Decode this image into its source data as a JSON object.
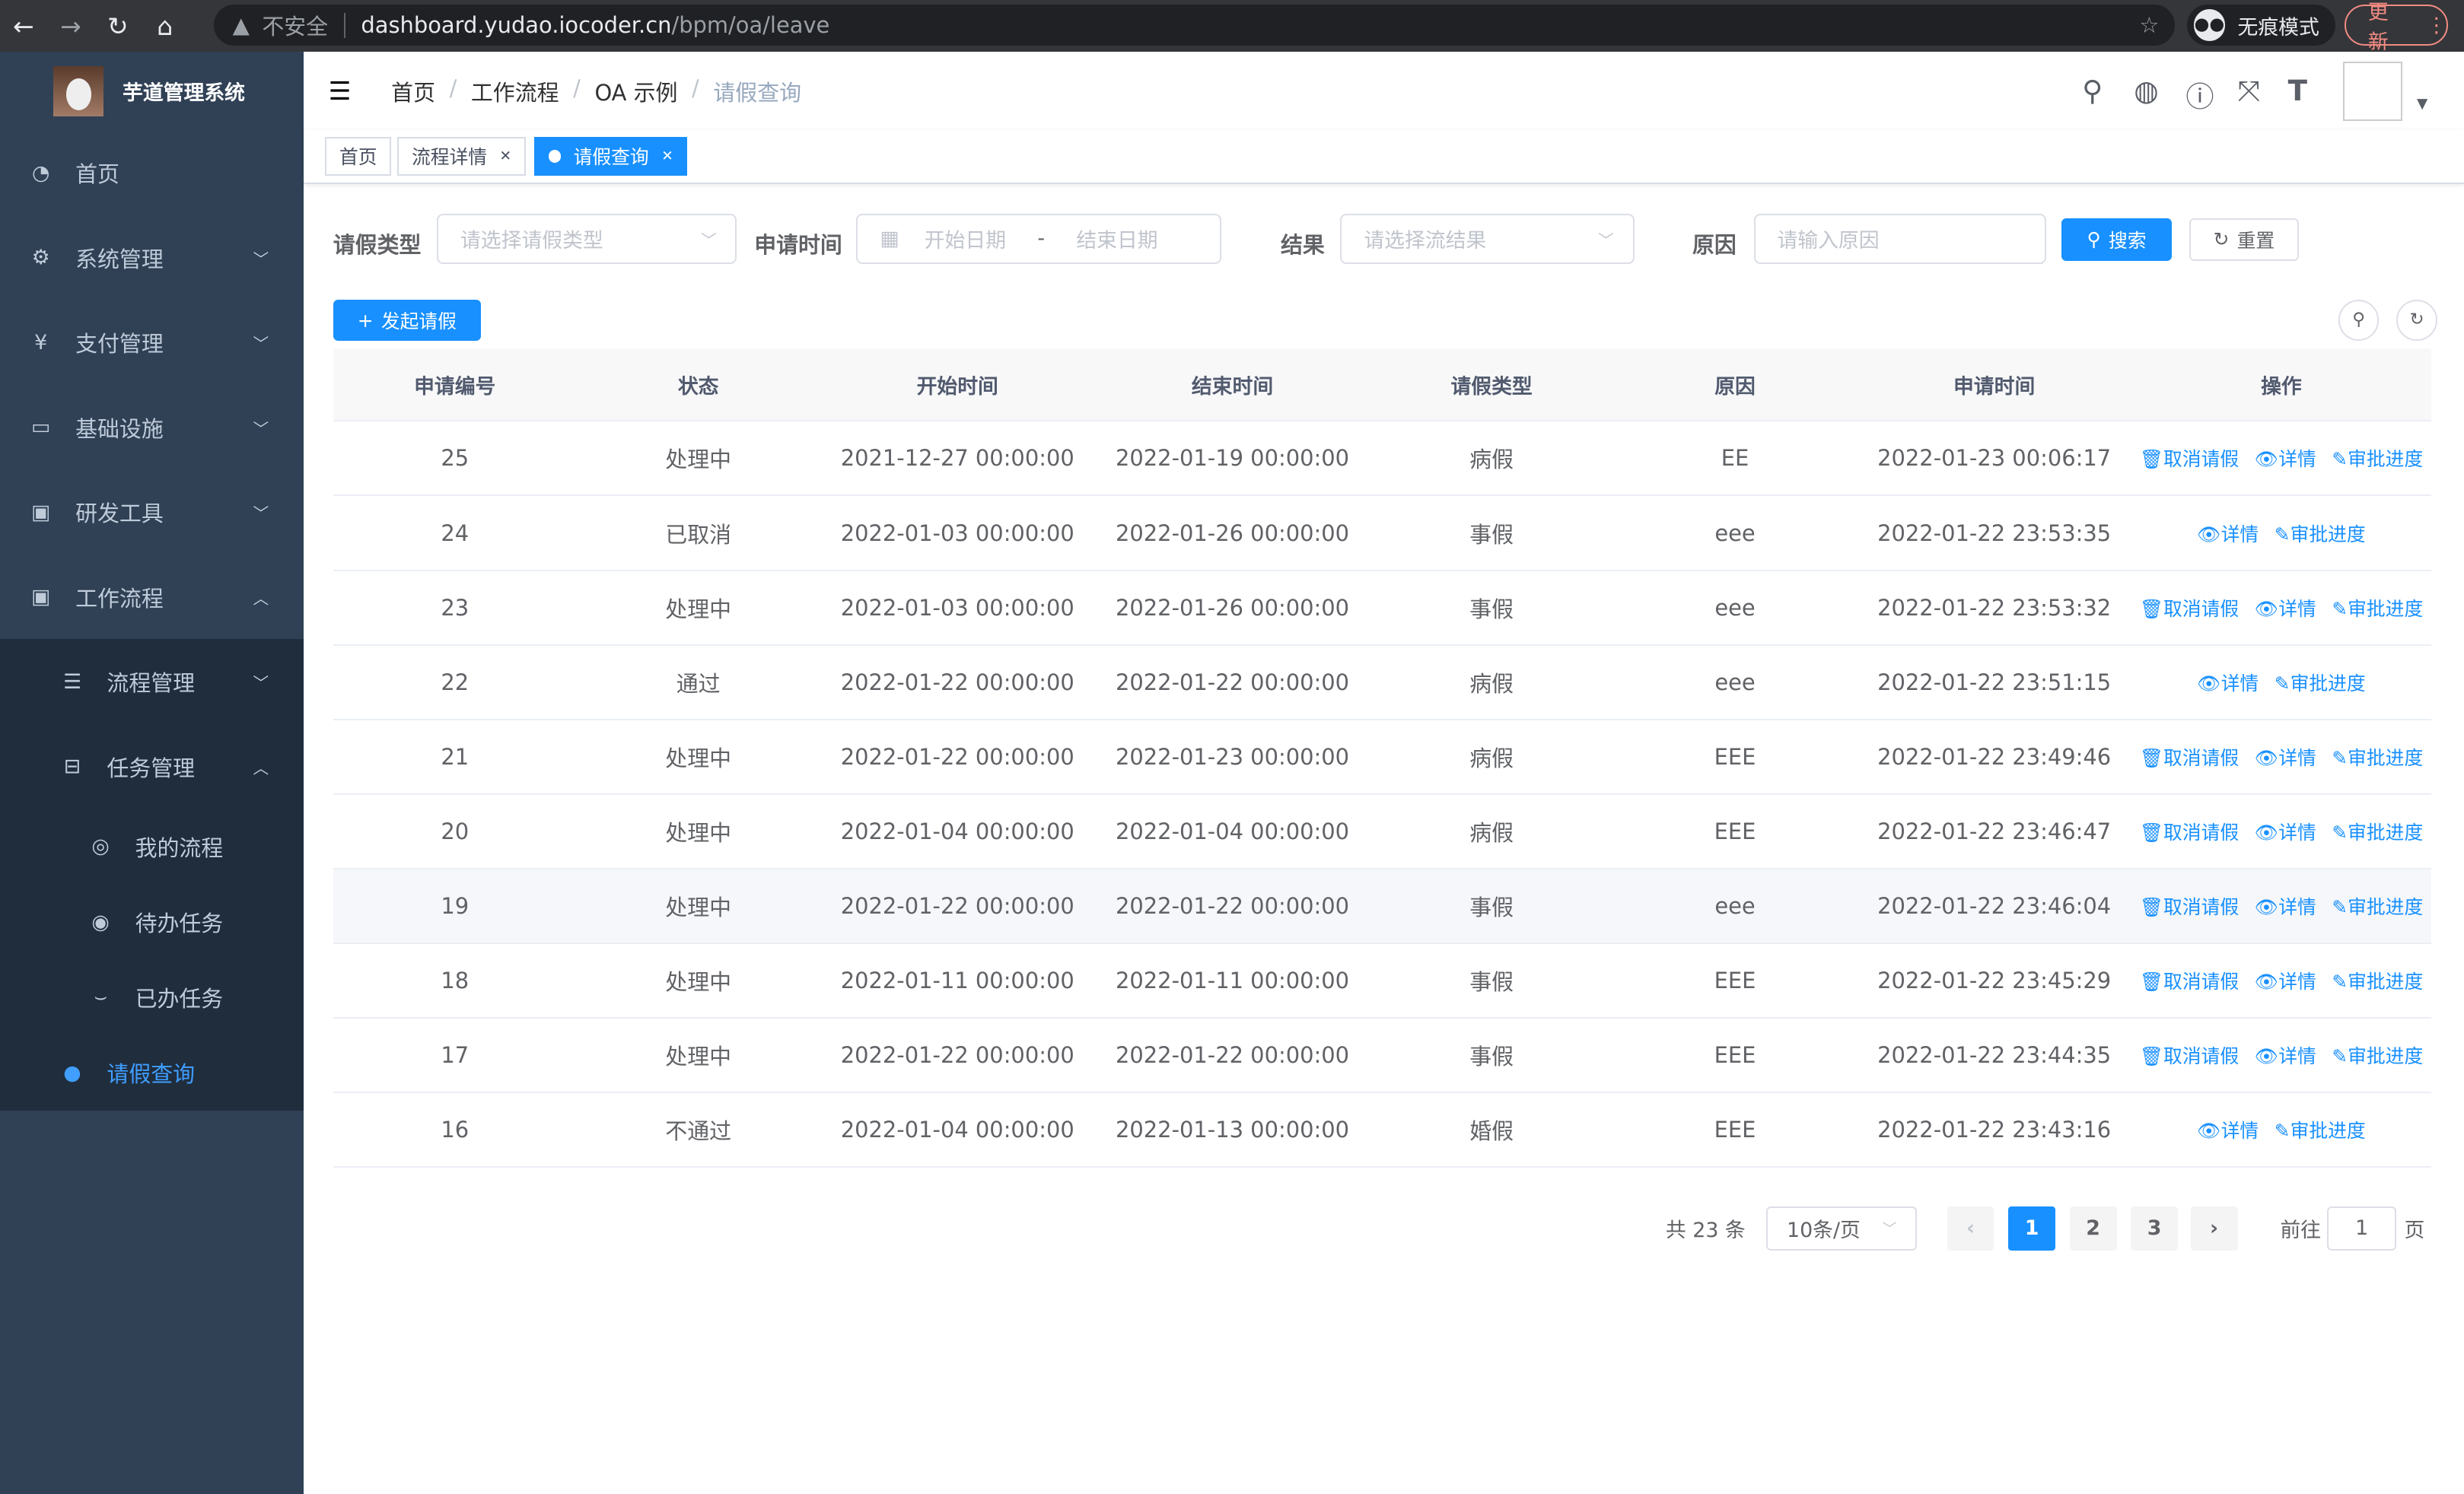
{
  "browser": {
    "insecure": "不安全",
    "url_host": "dashboard.yudao.iocoder.cn",
    "url_path": "/bpm/oa/leave",
    "incognito": "无痕模式",
    "update": "更新"
  },
  "app": {
    "title": "芋道管理系统"
  },
  "sidebar": {
    "items": [
      {
        "label": "首页",
        "icon": "dashboard-icon"
      },
      {
        "label": "系统管理",
        "icon": "gear-icon"
      },
      {
        "label": "支付管理",
        "icon": "yen-icon"
      },
      {
        "label": "基础设施",
        "icon": "monitor-icon"
      },
      {
        "label": "研发工具",
        "icon": "toolbox-icon"
      },
      {
        "label": "工作流程",
        "icon": "toolbox-icon"
      }
    ],
    "sub": [
      {
        "label": "流程管理"
      },
      {
        "label": "任务管理"
      }
    ],
    "sub2": [
      {
        "label": "我的流程"
      },
      {
        "label": "待办任务"
      },
      {
        "label": "已办任务"
      }
    ],
    "active": {
      "label": "请假查询"
    }
  },
  "breadcrumb": [
    "首页",
    "工作流程",
    "OA 示例",
    "请假查询"
  ],
  "tags": [
    {
      "label": "首页"
    },
    {
      "label": "流程详情"
    },
    {
      "label": "请假查询"
    }
  ],
  "filters": {
    "type_label": "请假类型",
    "type_placeholder": "请选择请假类型",
    "time_label": "申请时间",
    "start_placeholder": "开始日期",
    "range_sep": "-",
    "end_placeholder": "结束日期",
    "result_label": "结果",
    "result_placeholder": "请选择流结果",
    "reason_label": "原因",
    "reason_placeholder": "请输入原因",
    "search": "搜索",
    "reset": "重置"
  },
  "toolbar": {
    "add": "发起请假"
  },
  "table": {
    "columns": [
      "申请编号",
      "状态",
      "开始时间",
      "结束时间",
      "请假类型",
      "原因",
      "申请时间",
      "操作"
    ],
    "rows": [
      [
        "25",
        "处理中",
        "2021-12-27 00:00:00",
        "2022-01-19 00:00:00",
        "病假",
        "EE",
        "2022-01-23 00:06:17"
      ],
      [
        "24",
        "已取消",
        "2022-01-03 00:00:00",
        "2022-01-26 00:00:00",
        "事假",
        "eee",
        "2022-01-22 23:53:35"
      ],
      [
        "23",
        "处理中",
        "2022-01-03 00:00:00",
        "2022-01-26 00:00:00",
        "事假",
        "eee",
        "2022-01-22 23:53:32"
      ],
      [
        "22",
        "通过",
        "2022-01-22 00:00:00",
        "2022-01-22 00:00:00",
        "病假",
        "eee",
        "2022-01-22 23:51:15"
      ],
      [
        "21",
        "处理中",
        "2022-01-22 00:00:00",
        "2022-01-23 00:00:00",
        "病假",
        "EEE",
        "2022-01-22 23:49:46"
      ],
      [
        "20",
        "处理中",
        "2022-01-04 00:00:00",
        "2022-01-04 00:00:00",
        "病假",
        "EEE",
        "2022-01-22 23:46:47"
      ],
      [
        "19",
        "处理中",
        "2022-01-22 00:00:00",
        "2022-01-22 00:00:00",
        "事假",
        "eee",
        "2022-01-22 23:46:04"
      ],
      [
        "18",
        "处理中",
        "2022-01-11 00:00:00",
        "2022-01-11 00:00:00",
        "事假",
        "EEE",
        "2022-01-22 23:45:29"
      ],
      [
        "17",
        "处理中",
        "2022-01-22 00:00:00",
        "2022-01-22 00:00:00",
        "事假",
        "EEE",
        "2022-01-22 23:44:35"
      ],
      [
        "16",
        "不通过",
        "2022-01-04 00:00:00",
        "2022-01-13 00:00:00",
        "婚假",
        "EEE",
        "2022-01-22 23:43:16"
      ]
    ],
    "actions": {
      "cancel": "取消请假",
      "detail": "详情",
      "progress": "审批进度"
    }
  },
  "pagination": {
    "total": "共 23 条",
    "page_size": "10条/页",
    "pages": [
      "1",
      "2",
      "3"
    ],
    "current": "1",
    "goto": "前往",
    "goto_value": "1",
    "page_unit": "页"
  },
  "colors": {
    "primary": "#1890ff",
    "sidebar": "#304156"
  }
}
